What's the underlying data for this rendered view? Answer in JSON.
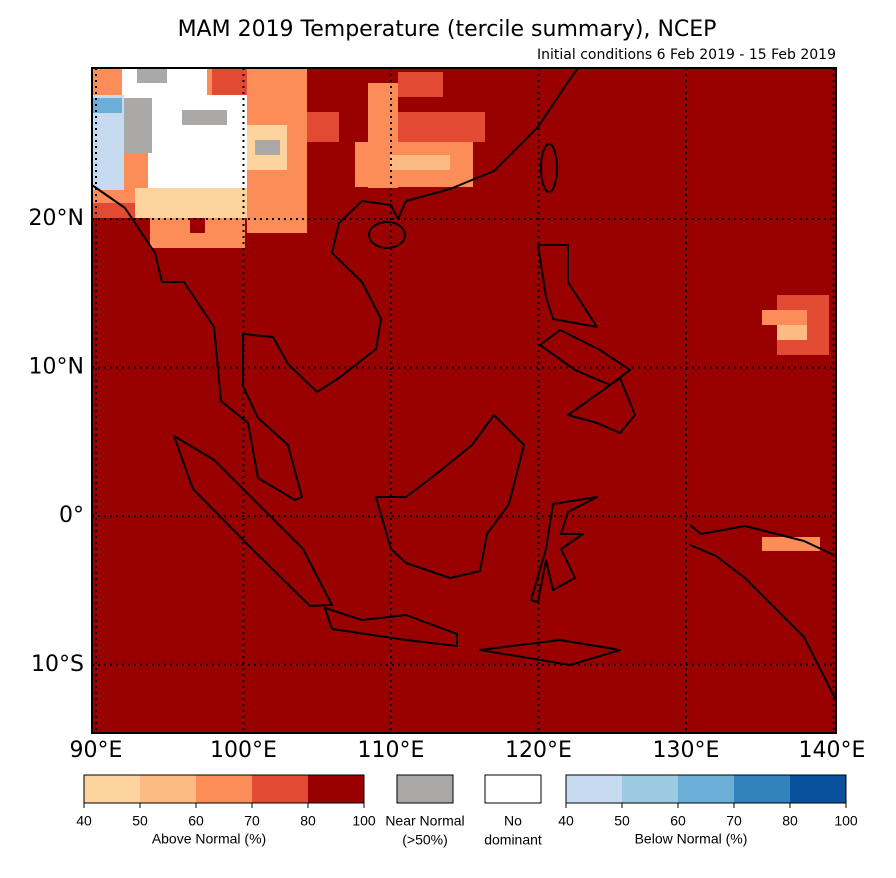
{
  "header": {
    "title": "MAM 2019 Temperature (tercile summary), NCEP",
    "subtitle": "Initial conditions 6 Feb 2019 - 15 Feb 2019"
  },
  "map": {
    "lat_labels": [
      "20°N",
      "10°N",
      "0°",
      "10°S"
    ],
    "lon_labels": [
      "90°E",
      "100°E",
      "110°E",
      "120°E",
      "130°E",
      "140°E"
    ]
  },
  "legend": {
    "above": {
      "label": "Above Normal (%)",
      "ticks": [
        40,
        50,
        60,
        70,
        80,
        100
      ],
      "colors": [
        "#fdd49e",
        "#fdbb84",
        "#fc8d59",
        "#e34a33",
        "#990000"
      ]
    },
    "near": {
      "lines": [
        "Near Normal",
        "(>50%)"
      ],
      "color": "#aba8a8"
    },
    "none": {
      "lines": [
        "No",
        "dominant"
      ],
      "color": "#ffffff"
    },
    "below": {
      "label": "Below Normal (%)",
      "ticks": [
        40,
        50,
        60,
        70,
        80,
        100
      ],
      "colors": [
        "#c6dbef",
        "#9ecae1",
        "#6baed6",
        "#3182bd",
        "#08519c"
      ]
    }
  }
}
